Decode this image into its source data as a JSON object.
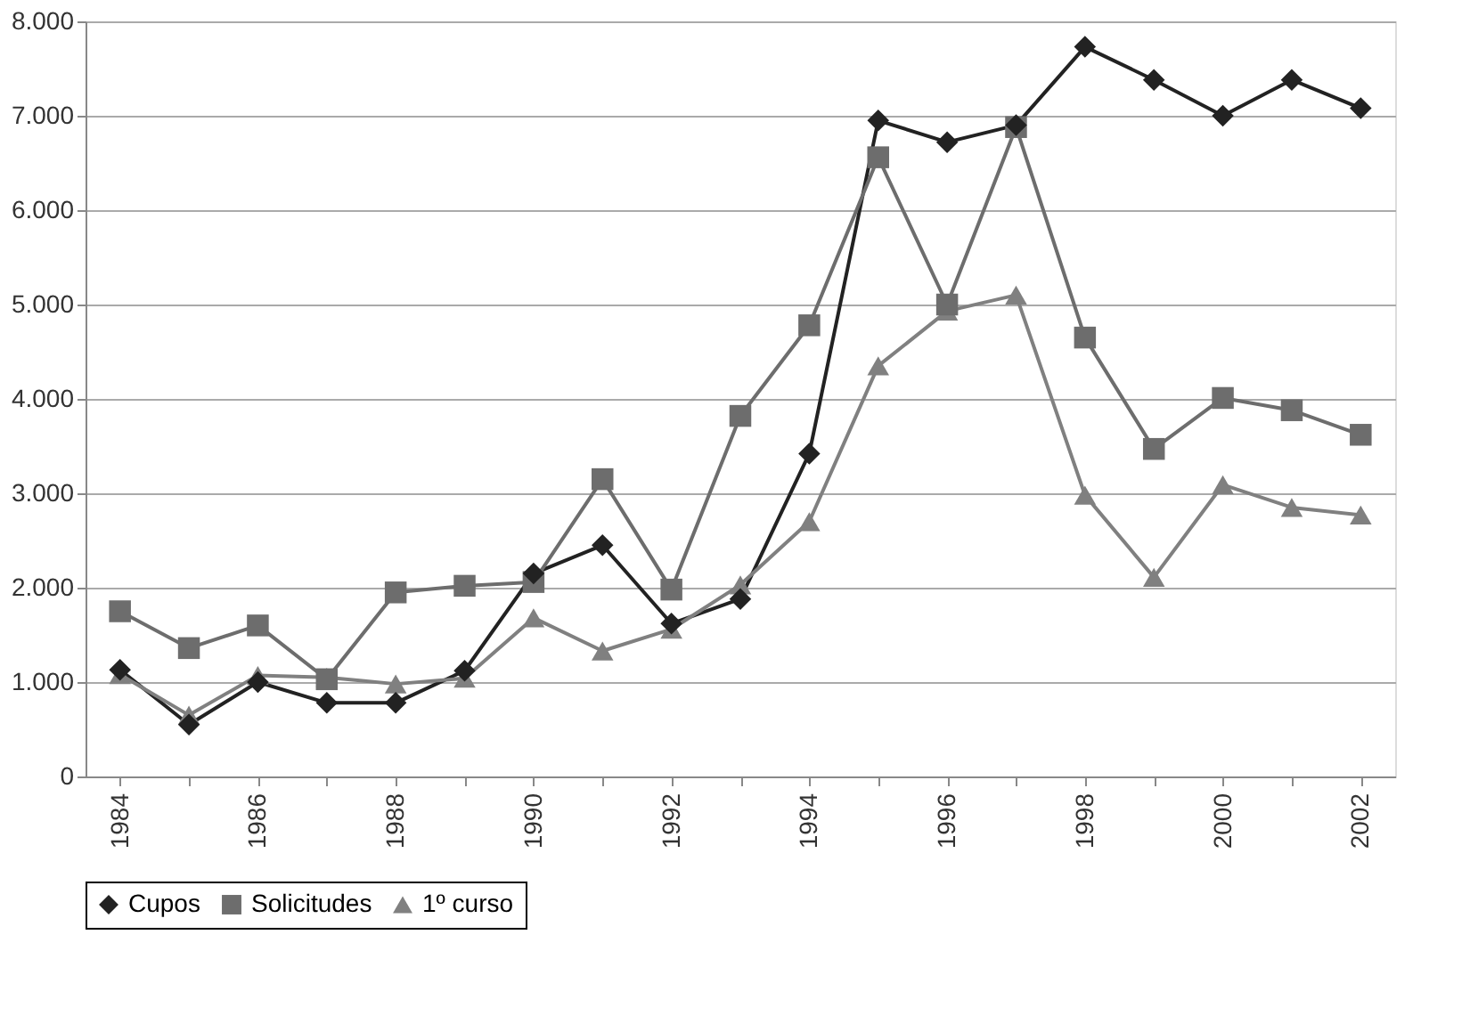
{
  "chart_data": {
    "type": "line",
    "categories": [
      "1984",
      null,
      "1986",
      null,
      "1988",
      null,
      "1990",
      null,
      "1992",
      null,
      "1994",
      null,
      "1996",
      null,
      "1998",
      null,
      "2000",
      null,
      "2002"
    ],
    "series": [
      {
        "name": "Cupos",
        "color": "#222222",
        "marker": "diamond",
        "values": [
          1130,
          550,
          1000,
          780,
          780,
          1120,
          2150,
          2450,
          1620,
          1880,
          3420,
          6950,
          6720,
          6900,
          7730,
          7380,
          7000,
          7380,
          7080
        ]
      },
      {
        "name": "Solicitudes",
        "color": "#6d6d6d",
        "marker": "square",
        "values": [
          1750,
          1360,
          1600,
          1030,
          1950,
          2020,
          2060,
          3150,
          1980,
          3820,
          4780,
          6560,
          5000,
          6880,
          4650,
          3470,
          4010,
          3880,
          3620
        ]
      },
      {
        "name": "1º curso",
        "color": "#808080",
        "marker": "triangle",
        "values": [
          1080,
          650,
          1070,
          1050,
          980,
          1040,
          1680,
          1330,
          1560,
          2030,
          2700,
          4350,
          4930,
          5100,
          2980,
          2110,
          3090,
          2850,
          2770
        ]
      }
    ],
    "ylim": [
      0,
      8000
    ],
    "yticks": [
      0,
      {
        "value": 1000,
        "label": "1.000"
      },
      {
        "value": 2000,
        "label": "2.000"
      },
      {
        "value": 3000,
        "label": "3.000"
      },
      {
        "value": 4000,
        "label": "4.000"
      },
      {
        "value": 5000,
        "label": "5.000"
      },
      {
        "value": 6000,
        "label": "6.000"
      },
      {
        "value": 7000,
        "label": "7.000"
      },
      {
        "value": 8000,
        "label": "8.000"
      }
    ],
    "grid": "y",
    "legend": "bottom",
    "line_style": "solid"
  }
}
